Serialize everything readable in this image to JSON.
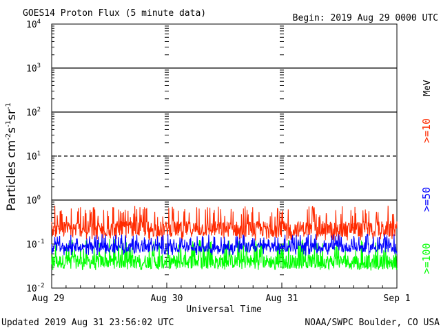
{
  "header": {
    "title": "GOES14 Proton Flux (5 minute data)",
    "begin": "Begin: 2019 Aug 29 0000 UTC"
  },
  "footer": {
    "updated": "Updated 2019 Aug 31 23:56:02 UTC",
    "credit": "NOAA/SWPC Boulder, CO USA"
  },
  "chart_data": {
    "type": "line",
    "title": "GOES14 Proton Flux (5 minute data)",
    "xlabel": "Universal Time",
    "ylabel": "Particles cm-2s-1sr-1",
    "x_ticks": [
      "Aug 29",
      "Aug 30",
      "Aug 31",
      "Sep 1"
    ],
    "y_ticks": [
      {
        "base": "10",
        "exp": "4"
      },
      {
        "base": "10",
        "exp": "3"
      },
      {
        "base": "10",
        "exp": "2"
      },
      {
        "base": "10",
        "exp": "1"
      },
      {
        "base": "10",
        "exp": "0"
      },
      {
        "base": "10",
        "exp": "-1"
      },
      {
        "base": "10",
        "exp": "-2"
      }
    ],
    "y_scale": "log",
    "ylim": [
      0.01,
      10000
    ],
    "xlim_days": [
      0,
      3
    ],
    "grid": "solid lines at 1, 100, 1000; dashed line at 10",
    "unit_label": "MeV",
    "series": [
      {
        "name": ">=10",
        "color": "#ff2a00",
        "typical_value": 0.22,
        "min": 0.12,
        "max": 0.75
      },
      {
        "name": ">=50",
        "color": "#0000ff",
        "typical_value": 0.085,
        "min": 0.055,
        "max": 0.17
      },
      {
        "name": ">=100",
        "color": "#00ff00",
        "typical_value": 0.04,
        "min": 0.025,
        "max": 0.13
      }
    ]
  }
}
